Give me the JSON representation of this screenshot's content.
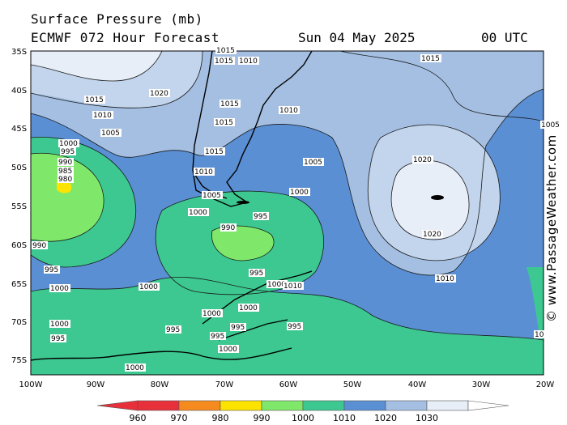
{
  "header": {
    "title": "Surface Pressure (mb)",
    "model": "ECMWF 072 Hour Forecast",
    "date": "Sun 04 May 2025",
    "time": "00 UTC"
  },
  "credit": "© www.PassageWeather.com",
  "axes": {
    "lat_labels": [
      "35S",
      "40S",
      "45S",
      "50S",
      "55S",
      "60S",
      "65S",
      "70S",
      "75S"
    ],
    "lon_labels": [
      "100W",
      "90W",
      "80W",
      "70W",
      "60W",
      "50W",
      "40W",
      "30W",
      "20W"
    ]
  },
  "colorbar": {
    "labels": [
      "960",
      "970",
      "980",
      "990",
      "1000",
      "1010",
      "1020",
      "1030"
    ],
    "colors": [
      "#e8303a",
      "#f58a1f",
      "#fce300",
      "#7fe86a",
      "#3cc890",
      "#5b8fd4",
      "#a4bfe2",
      "#e8eef8"
    ]
  },
  "isobar_labels": [
    {
      "text": "1015"
    },
    {
      "text": "1010"
    },
    {
      "text": "1015"
    },
    {
      "text": "1020"
    },
    {
      "text": "1015"
    },
    {
      "text": "1010"
    },
    {
      "text": "1005"
    },
    {
      "text": "1000"
    },
    {
      "text": "995"
    },
    {
      "text": "990"
    },
    {
      "text": "985"
    },
    {
      "text": "980"
    },
    {
      "text": "990"
    },
    {
      "text": "995"
    },
    {
      "text": "1000"
    },
    {
      "text": "1015"
    },
    {
      "text": "1015"
    },
    {
      "text": "1015"
    },
    {
      "text": "1010"
    },
    {
      "text": "1005"
    },
    {
      "text": "1010"
    },
    {
      "text": "1005"
    },
    {
      "text": "1000"
    },
    {
      "text": "1000"
    },
    {
      "text": "995"
    },
    {
      "text": "990"
    },
    {
      "text": "995"
    },
    {
      "text": "1000"
    },
    {
      "text": "1000"
    },
    {
      "text": "1000"
    },
    {
      "text": "1000"
    },
    {
      "text": "1000"
    },
    {
      "text": "995"
    },
    {
      "text": "995"
    },
    {
      "text": "995"
    },
    {
      "text": "995"
    },
    {
      "text": "995"
    },
    {
      "text": "1000"
    },
    {
      "text": "1000"
    },
    {
      "text": "1020"
    },
    {
      "text": "1020"
    },
    {
      "text": "1010"
    },
    {
      "text": "1015"
    },
    {
      "text": "1010"
    },
    {
      "text": "1005"
    },
    {
      "text": "10"
    }
  ]
}
